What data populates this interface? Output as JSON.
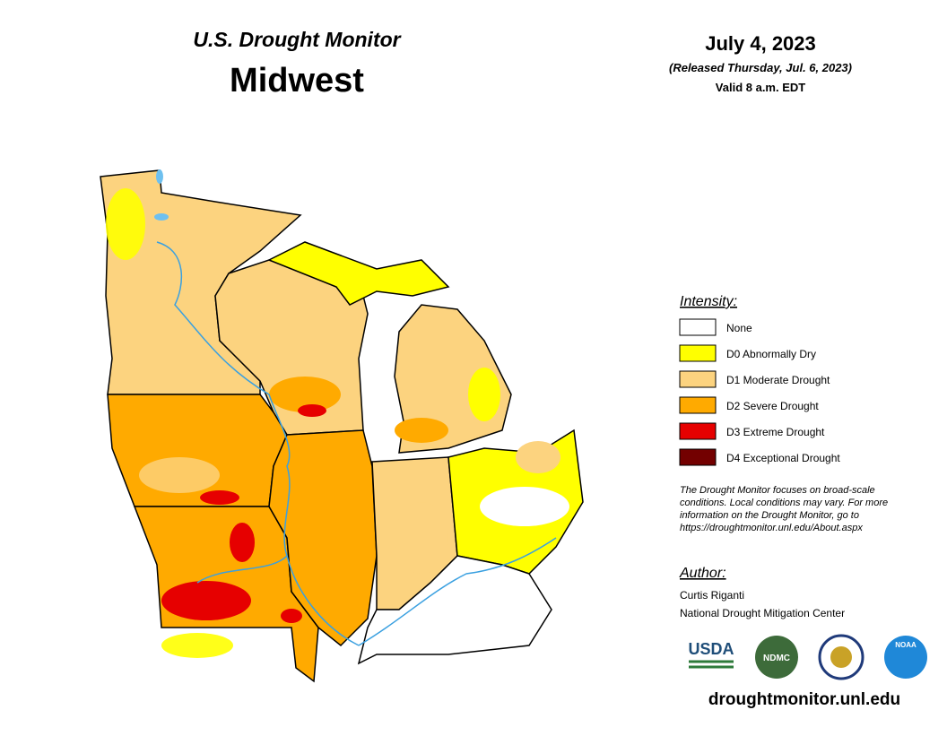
{
  "header": {
    "title": "U.S. Drought Monitor",
    "region": "Midwest",
    "date": "July 4, 2023",
    "released": "(Released Thursday, Jul. 6, 2023)",
    "valid": "Valid 8 a.m. EDT"
  },
  "legend": {
    "heading": "Intensity:",
    "items": [
      {
        "label": "None",
        "color": "#ffffff"
      },
      {
        "label": "D0 Abnormally Dry",
        "color": "#ffff00"
      },
      {
        "label": "D1 Moderate Drought",
        "color": "#fcd37f"
      },
      {
        "label": "D2 Severe Drought",
        "color": "#ffaa00"
      },
      {
        "label": "D3 Extreme Drought",
        "color": "#e60000"
      },
      {
        "label": "D4 Exceptional Drought",
        "color": "#730000"
      }
    ]
  },
  "note": [
    "The Drought Monitor focuses on broad-scale",
    "conditions. Local conditions may vary. For more",
    "information on the Drought Monitor, go to",
    "https://droughtmonitor.unl.edu/About.aspx"
  ],
  "author": {
    "heading": "Author:",
    "name": "Curtis Riganti",
    "org": "National Drought Mitigation Center"
  },
  "logos": [
    "USDA",
    "NDMC",
    "NOAA"
  ],
  "url": "droughtmonitor.unl.edu"
}
